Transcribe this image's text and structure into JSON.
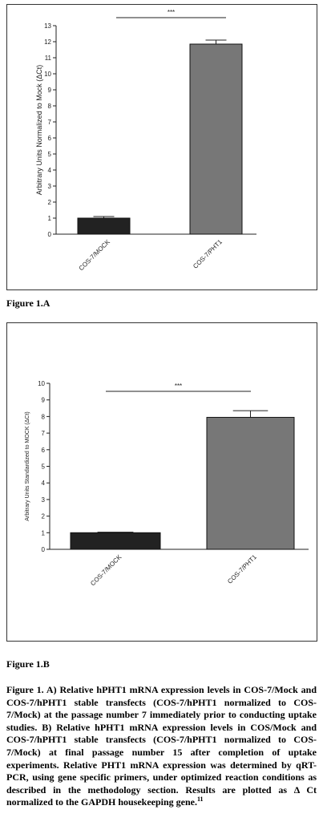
{
  "chart_data": [
    {
      "type": "bar",
      "ylabel": "Arbitrary Units Normalized to Mock (ΔCt)",
      "categories": [
        "COS-7/MOCK",
        "COS-7/PHT1"
      ],
      "values": [
        1.0,
        11.85
      ],
      "errors": [
        0.1,
        0.25
      ],
      "colors": [
        "#222222",
        "#777777"
      ],
      "significance": "***",
      "ylim": [
        0,
        13
      ],
      "yticks": [
        0,
        1,
        2,
        3,
        4,
        5,
        6,
        7,
        8,
        9,
        10,
        11,
        12,
        13
      ]
    },
    {
      "type": "bar",
      "ylabel": "Arbitrary Units Standardized to MOCK (ΔCt)",
      "categories": [
        "COS-7/MOCK",
        "COS-7/PHT1"
      ],
      "values": [
        1.0,
        7.95
      ],
      "errors": [
        0.03,
        0.4
      ],
      "colors": [
        "#222222",
        "#777777"
      ],
      "significance": "***",
      "ylim": [
        0,
        10
      ],
      "yticks": [
        0,
        1,
        2,
        3,
        4,
        5,
        6,
        7,
        8,
        9,
        10
      ]
    }
  ],
  "labels": [
    "Figure 1.A",
    "Figure 1.B"
  ],
  "caption": {
    "text": "Figure 1. A) Relative hPHT1 mRNA expression levels in COS-7/Mock and COS-7/hPHT1 stable transfects (COS-7/hPHT1 normalized to COS-7/Mock) at the passage number 7 immediately prior to conducting uptake studies. B) Relative hPHT1 mRNA expression levels in COS/Mock and COS-7/hPHT1 stable transfects (COS-7/hPHT1 normalized to COS-7/Mock) at final passage number 15 after completion of uptake experiments. Relative PHT1 mRNA expression was determined by qRT-PCR, using gene specific primers, under optimized reaction conditions as described in the methodology section. Results are plotted as Δ Ct normalized to the GAPDH housekeeping gene.",
    "ref": "11"
  }
}
